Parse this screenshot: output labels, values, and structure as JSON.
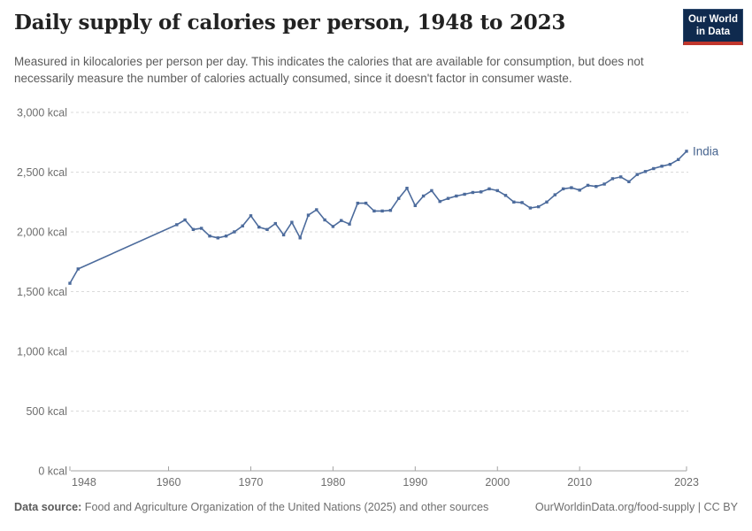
{
  "header": {
    "title": "Daily supply of calories per person, 1948 to 2023",
    "subtitle": "Measured in kilocalories per person per day. This indicates the calories that are available for consumption, but does not necessarily measure the number of calories actually consumed, since it doesn't factor in consumer waste.",
    "logo_line1": "Our World",
    "logo_line2": "in Data"
  },
  "footer": {
    "source_label": "Data source:",
    "source_text": " Food and Agriculture Organization of the United Nations (2025) and other sources",
    "link_text": "OurWorldinData.org/food-supply | CC BY"
  },
  "colors": {
    "line": "#4C6B9C",
    "entity_label": "#47648F",
    "gridline": "#dadada",
    "axis": "#a3a3a3",
    "tick_label": "#6e6e6e",
    "logo_bg": "#0f2a4e",
    "logo_red": "#c0362c"
  },
  "chart_data": {
    "type": "line",
    "title": "Daily supply of calories per person, 1948 to 2023",
    "xlabel": "",
    "ylabel": "kcal",
    "xlim": [
      1948,
      2023
    ],
    "ylim": [
      0,
      3000
    ],
    "grid": "horizontal-dashed",
    "legend_position": "end-of-line-label",
    "x_ticks": [
      1948,
      1960,
      1970,
      1980,
      1990,
      2000,
      2010,
      2023
    ],
    "y_ticks": [
      0,
      500,
      1000,
      1500,
      2000,
      2500,
      3000
    ],
    "y_tick_suffix": " kcal",
    "series": [
      {
        "name": "India",
        "points": [
          [
            1948,
            1570
          ],
          [
            1949,
            1690
          ],
          [
            1961,
            2060
          ],
          [
            1962,
            2100
          ],
          [
            1963,
            2020
          ],
          [
            1964,
            2030
          ],
          [
            1965,
            1965
          ],
          [
            1966,
            1950
          ],
          [
            1967,
            1965
          ],
          [
            1968,
            2000
          ],
          [
            1969,
            2050
          ],
          [
            1970,
            2135
          ],
          [
            1971,
            2040
          ],
          [
            1972,
            2020
          ],
          [
            1973,
            2070
          ],
          [
            1974,
            1975
          ],
          [
            1975,
            2080
          ],
          [
            1976,
            1950
          ],
          [
            1977,
            2140
          ],
          [
            1978,
            2185
          ],
          [
            1979,
            2100
          ],
          [
            1980,
            2045
          ],
          [
            1981,
            2095
          ],
          [
            1982,
            2065
          ],
          [
            1983,
            2240
          ],
          [
            1984,
            2240
          ],
          [
            1985,
            2175
          ],
          [
            1986,
            2175
          ],
          [
            1987,
            2180
          ],
          [
            1988,
            2280
          ],
          [
            1989,
            2365
          ],
          [
            1990,
            2220
          ],
          [
            1991,
            2300
          ],
          [
            1992,
            2345
          ],
          [
            1993,
            2255
          ],
          [
            1994,
            2280
          ],
          [
            1995,
            2300
          ],
          [
            1996,
            2315
          ],
          [
            1997,
            2330
          ],
          [
            1998,
            2335
          ],
          [
            1999,
            2360
          ],
          [
            2000,
            2345
          ],
          [
            2001,
            2305
          ],
          [
            2002,
            2250
          ],
          [
            2003,
            2245
          ],
          [
            2004,
            2200
          ],
          [
            2005,
            2210
          ],
          [
            2006,
            2250
          ],
          [
            2007,
            2310
          ],
          [
            2008,
            2360
          ],
          [
            2009,
            2370
          ],
          [
            2010,
            2350
          ],
          [
            2011,
            2390
          ],
          [
            2012,
            2380
          ],
          [
            2013,
            2400
          ],
          [
            2014,
            2445
          ],
          [
            2015,
            2460
          ],
          [
            2016,
            2420
          ],
          [
            2017,
            2480
          ],
          [
            2018,
            2505
          ],
          [
            2019,
            2530
          ],
          [
            2020,
            2550
          ],
          [
            2021,
            2565
          ],
          [
            2022,
            2605
          ],
          [
            2023,
            2675
          ]
        ]
      }
    ]
  }
}
